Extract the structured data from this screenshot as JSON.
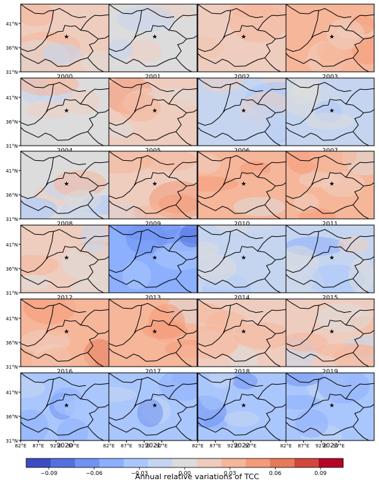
{
  "figure": {
    "caption_colorbar": "Annual relative variations of TCC"
  },
  "axes": {
    "lat_ticks": [
      "41°N",
      "36°N",
      "31°N"
    ],
    "lon_ticks": [
      "82°E",
      "87°E",
      "92°E",
      "97°E"
    ]
  },
  "colorbar": {
    "ticks": [
      "−0.09",
      "−0.06",
      "−0.03",
      "0.00",
      "0.03",
      "0.06",
      "0.09"
    ],
    "range": [
      -0.105,
      0.105
    ],
    "colors": [
      "#3b4cc0",
      "#5470de",
      "#6f92f3",
      "#8caffe",
      "#aac7fd",
      "#c5d5f0",
      "#dddcdc",
      "#eecdbf",
      "#f6b69a",
      "#f49b7a",
      "#e67a5a",
      "#d0473c",
      "#b40426"
    ]
  },
  "panels": [
    {
      "year": "2000",
      "mean": 0.015
    },
    {
      "year": "2001",
      "mean": 0.0
    },
    {
      "year": "2002",
      "mean": 0.02
    },
    {
      "year": "2003",
      "mean": 0.035
    },
    {
      "year": "2004",
      "mean": 0.0
    },
    {
      "year": "2005",
      "mean": 0.02
    },
    {
      "year": "2006",
      "mean": -0.01
    },
    {
      "year": "2007",
      "mean": -0.02
    },
    {
      "year": "2008",
      "mean": 0.0
    },
    {
      "year": "2009",
      "mean": 0.02
    },
    {
      "year": "2010",
      "mean": 0.025
    },
    {
      "year": "2011",
      "mean": 0.025
    },
    {
      "year": "2012",
      "mean": 0.01
    },
    {
      "year": "2013",
      "mean": -0.05
    },
    {
      "year": "2014",
      "mean": -0.01
    },
    {
      "year": "2015",
      "mean": -0.015
    },
    {
      "year": "2016",
      "mean": 0.03
    },
    {
      "year": "2017",
      "mean": 0.025
    },
    {
      "year": "2018",
      "mean": 0.015
    },
    {
      "year": "2019",
      "mean": 0.01
    },
    {
      "year": "2020",
      "mean": -0.03
    },
    {
      "year": "2021",
      "mean": -0.04
    },
    {
      "year": "2022",
      "mean": -0.04
    },
    {
      "year": "2023",
      "mean": -0.04
    }
  ]
}
